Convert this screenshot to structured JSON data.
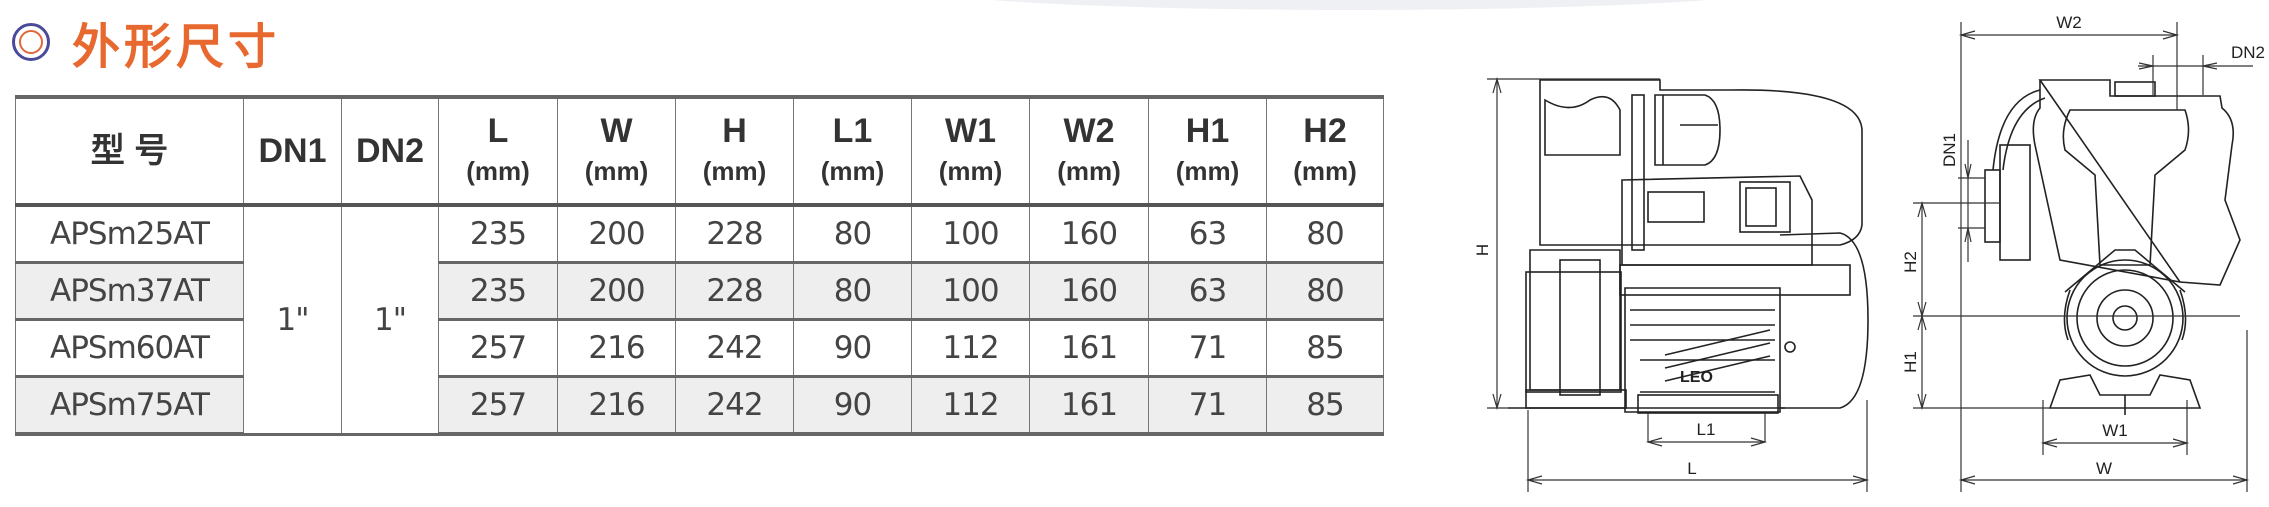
{
  "title": "外形尺寸",
  "colors": {
    "title": "#e8692f",
    "ring_outer": "#4a4a9a",
    "ring_inner": "#e0673a",
    "row_shade": "#eeeeee"
  },
  "table": {
    "headers": [
      {
        "label": "型 号",
        "unit": ""
      },
      {
        "label": "DN1",
        "unit": ""
      },
      {
        "label": "DN2",
        "unit": ""
      },
      {
        "label": "L",
        "unit": "(mm)"
      },
      {
        "label": "W",
        "unit": "(mm)"
      },
      {
        "label": "H",
        "unit": "(mm)"
      },
      {
        "label": "L1",
        "unit": "(mm)"
      },
      {
        "label": "W1",
        "unit": "(mm)"
      },
      {
        "label": "W2",
        "unit": "(mm)"
      },
      {
        "label": "H1",
        "unit": "(mm)"
      },
      {
        "label": "H2",
        "unit": "(mm)"
      }
    ],
    "dn1": "1\"",
    "dn2": "1\"",
    "rows": [
      {
        "model": "APSm25AT",
        "values": [
          "235",
          "200",
          "228",
          "80",
          "100",
          "160",
          "63",
          "80"
        ]
      },
      {
        "model": "APSm37AT",
        "values": [
          "235",
          "200",
          "228",
          "80",
          "100",
          "160",
          "63",
          "80"
        ]
      },
      {
        "model": "APSm60AT",
        "values": [
          "257",
          "216",
          "242",
          "90",
          "112",
          "161",
          "71",
          "85"
        ]
      },
      {
        "model": "APSm75AT",
        "values": [
          "257",
          "216",
          "242",
          "90",
          "112",
          "161",
          "71",
          "85"
        ]
      }
    ]
  },
  "drawing": {
    "side_labels": {
      "H": "H",
      "L": "L",
      "L1": "L1",
      "logo": "LEO"
    },
    "front_labels": {
      "W": "W",
      "W1": "W1",
      "W2": "W2",
      "H1": "H1",
      "H2": "H2",
      "DN1": "DN1",
      "DN2": "DN2"
    }
  }
}
